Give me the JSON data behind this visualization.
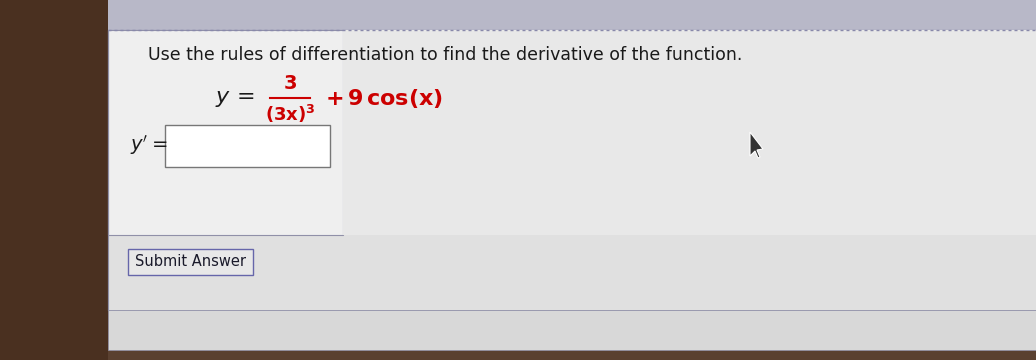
{
  "bg_outer_color": "#5a4030",
  "bg_main_color": "#e8e8e8",
  "bg_content_color": "#f0f0f0",
  "bg_bottom_color": "#d8d8d8",
  "white_box_color": "#ffffff",
  "dotted_line_color": "#8888aa",
  "border_color": "#9090a8",
  "instruction_text": "Use the rules of differentiation to find the derivative of the function.",
  "instruction_color": "#1a1a1a",
  "instruction_fontsize": 12.5,
  "equation_color": "#cc0000",
  "equation_black_color": "#1a1a1a",
  "submit_label": "Submit Answer",
  "figsize": [
    10.36,
    3.6
  ],
  "dpi": 100
}
